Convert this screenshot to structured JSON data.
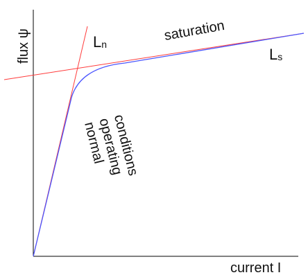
{
  "axes": {
    "y_label": "flux ψ",
    "x_label": "current I"
  },
  "lines": {
    "ln_label": "L",
    "ln_sub": "n",
    "ls_label": "L",
    "ls_sub": "s"
  },
  "regions": {
    "saturation": "saturation",
    "normal_line1": "normal",
    "normal_line2": "operating",
    "normal_line3": "conditions"
  },
  "colors": {
    "axis": "#000000",
    "asymptotes": "#ff3b3b",
    "curve": "#4a55ff"
  }
}
